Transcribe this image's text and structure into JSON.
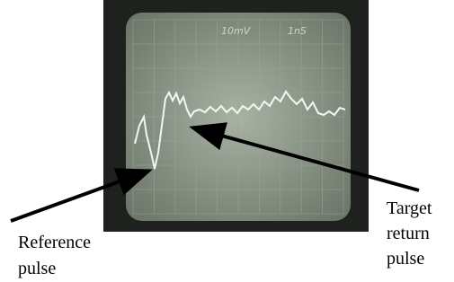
{
  "screen": {
    "volts_per_div": "10mV",
    "time_per_div": "1nS"
  },
  "annotations": {
    "reference": [
      "Reference",
      "pulse"
    ],
    "target": [
      "Target",
      "return",
      "pulse"
    ]
  }
}
